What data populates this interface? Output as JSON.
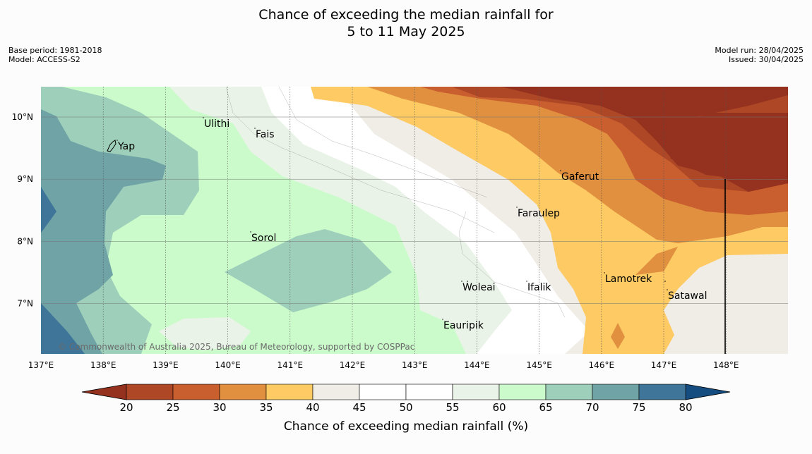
{
  "title": {
    "line1": "Chance of exceeding the median rainfall for",
    "line2": "5 to 11 May 2025"
  },
  "meta_left": {
    "base_period": "Base period: 1981-2018",
    "model": "Model: ACCESS-S2"
  },
  "meta_right": {
    "model_run": "Model run: 28/04/2025",
    "issued": "Issued: 30/04/2025"
  },
  "map": {
    "lon_labels": [
      "137°E",
      "138°E",
      "139°E",
      "140°E",
      "141°E",
      "142°E",
      "143°E",
      "144°E",
      "145°E",
      "146°E",
      "147°E",
      "148°E"
    ],
    "lat_labels": [
      "10°N",
      "9°N",
      "8°N",
      "7°N"
    ],
    "places": [
      "Ulithi",
      "Fais",
      "Yap",
      "Gaferut",
      "Faraulep",
      "Sorol",
      "Lamotrek",
      "Woleai",
      "Ifalik",
      "Satawal",
      "Eauripik"
    ],
    "credit": "© Commonwealth of Australia 2025, Bureau of Meteorology, supported by COSPPac"
  },
  "colorbar": {
    "label": "Chance of exceeding median rainfall (%)",
    "ticks": [
      "20",
      "25",
      "30",
      "35",
      "40",
      "45",
      "50",
      "55",
      "60",
      "65",
      "70",
      "75",
      "80"
    ],
    "colors": [
      "#ad4726",
      "#c95e2f",
      "#e0903f",
      "#fdca64",
      "#f0ece6",
      "#ffffff",
      "#ffffff",
      "#eaf3e8",
      "#cbfbcb",
      "#9ecfba",
      "#6fa3a6",
      "#3f7598"
    ],
    "under_color": "#94311f",
    "over_color": "#154d80"
  }
}
